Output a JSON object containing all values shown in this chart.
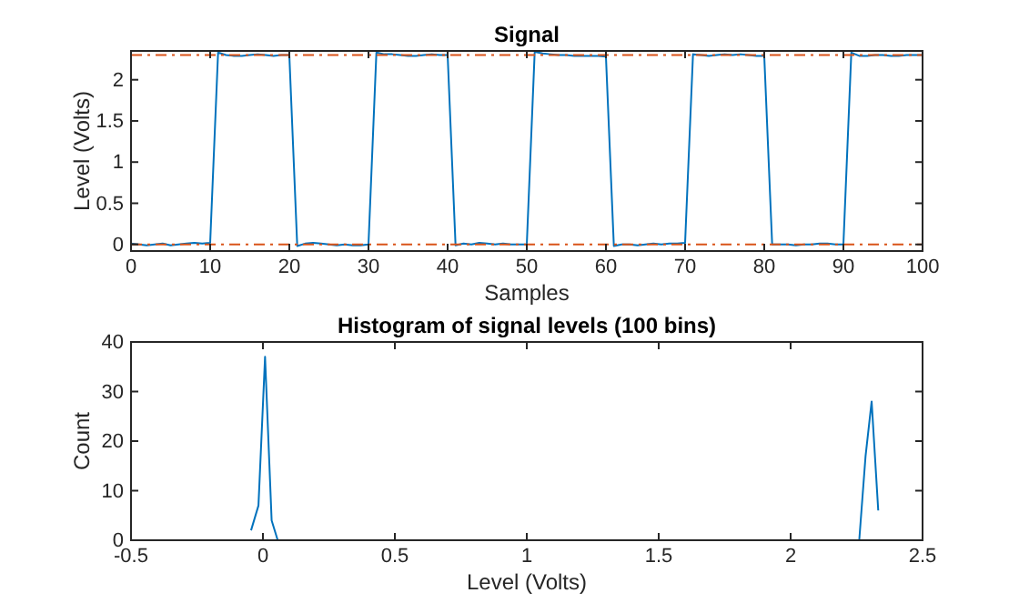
{
  "chart_data": [
    {
      "type": "line",
      "title": "Signal",
      "xlabel": "Samples",
      "ylabel": "Level (Volts)",
      "color": "#0072bd",
      "x": [
        0,
        1,
        2,
        3,
        4,
        5,
        6,
        7,
        8,
        9,
        10,
        11,
        12,
        13,
        14,
        15,
        16,
        17,
        18,
        19,
        20,
        21,
        22,
        23,
        24,
        25,
        26,
        27,
        28,
        29,
        30,
        31,
        32,
        33,
        34,
        35,
        36,
        37,
        38,
        39,
        40,
        41,
        42,
        43,
        44,
        45,
        46,
        47,
        48,
        49,
        50,
        51,
        52,
        53,
        54,
        55,
        56,
        57,
        58,
        59,
        60,
        61,
        62,
        63,
        64,
        65,
        66,
        67,
        68,
        69,
        70,
        71,
        72,
        73,
        74,
        75,
        76,
        77,
        78,
        79,
        80,
        81,
        82,
        83,
        84,
        85,
        86,
        87,
        88,
        89,
        90,
        91,
        92,
        93,
        94,
        95,
        96,
        97,
        98,
        99,
        100
      ],
      "values": [
        0.01,
        0,
        -0.01,
        0,
        0.01,
        -0.01,
        0,
        0.01,
        0.02,
        0.01,
        0.02,
        2.33,
        2.3,
        2.29,
        2.29,
        2.3,
        2.31,
        2.3,
        2.29,
        2.3,
        2.3,
        -0.02,
        0.01,
        0.02,
        0.01,
        0,
        -0.01,
        0,
        -0.01,
        -0.01,
        0,
        2.33,
        2.31,
        2.31,
        2.3,
        2.29,
        2.29,
        2.3,
        2.31,
        2.3,
        2.3,
        -0.01,
        0.01,
        0,
        0.02,
        0.01,
        0,
        0.01,
        0,
        0,
        0,
        2.34,
        2.32,
        2.31,
        2.3,
        2.3,
        2.29,
        2.29,
        2.29,
        2.29,
        2.28,
        -0.02,
        0,
        0,
        -0.01,
        0,
        0.01,
        0,
        0.01,
        0.01,
        0.02,
        2.31,
        2.3,
        2.29,
        2.3,
        2.31,
        2.3,
        2.31,
        2.3,
        2.29,
        2.29,
        0,
        0,
        0,
        -0.01,
        0,
        0,
        0.01,
        0.01,
        0,
        0,
        2.33,
        2.29,
        2.29,
        2.3,
        2.3,
        2.29,
        2.29,
        2.3,
        2.3,
        2.3
      ],
      "xlim": [
        0,
        100
      ],
      "xticks": [
        0,
        10,
        20,
        30,
        40,
        50,
        60,
        70,
        80,
        90,
        100
      ],
      "ylim": [
        -0.08,
        2.35
      ],
      "yticks": [
        0,
        0.5,
        1,
        1.5,
        2
      ],
      "ref_lines": [
        {
          "axis": "y",
          "value": 0,
          "color": "#d95319",
          "line_style": "dashdot"
        },
        {
          "axis": "y",
          "value": 2.3,
          "color": "#d95319",
          "line_style": "dashdot"
        }
      ]
    },
    {
      "type": "line",
      "title": "Histogram of signal levels (100 bins)",
      "xlabel": "Level (Volts)",
      "ylabel": "Count",
      "color": "#0072bd",
      "x": [
        -0.045,
        -0.017,
        0.008,
        0.033,
        0.056,
        2.26,
        2.284,
        2.307,
        2.332
      ],
      "values": [
        2,
        7,
        37,
        4,
        0,
        0,
        17,
        28,
        6
      ],
      "xlim": [
        -0.5,
        2.5
      ],
      "xticks": [
        -0.5,
        0,
        0.5,
        1,
        1.5,
        2,
        2.5
      ],
      "ylim": [
        0,
        40
      ],
      "yticks": [
        0,
        10,
        20,
        30,
        40
      ]
    }
  ]
}
